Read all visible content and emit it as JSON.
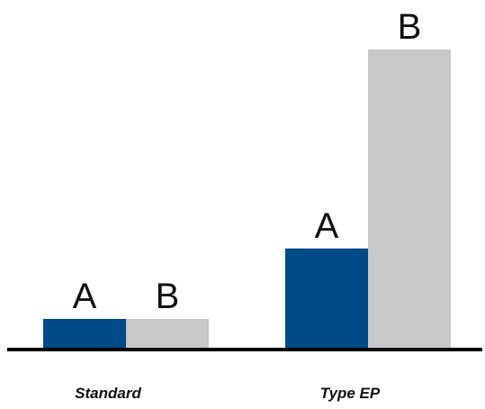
{
  "chart_data": {
    "type": "bar",
    "categories": [
      "Standard",
      "Type EP"
    ],
    "series": [
      {
        "values": [
          1,
          3.3
        ]
      },
      {
        "values": [
          1,
          9.8
        ]
      }
    ],
    "data_labels": [
      "A",
      "B"
    ],
    "title": "",
    "xlabel": "",
    "ylabel": "",
    "ylim": [
      0,
      10.5
    ],
    "grid": false,
    "legend": "none",
    "colors": [
      "#004a87",
      "#c6c8ca"
    ],
    "axis_color": "#000000"
  }
}
